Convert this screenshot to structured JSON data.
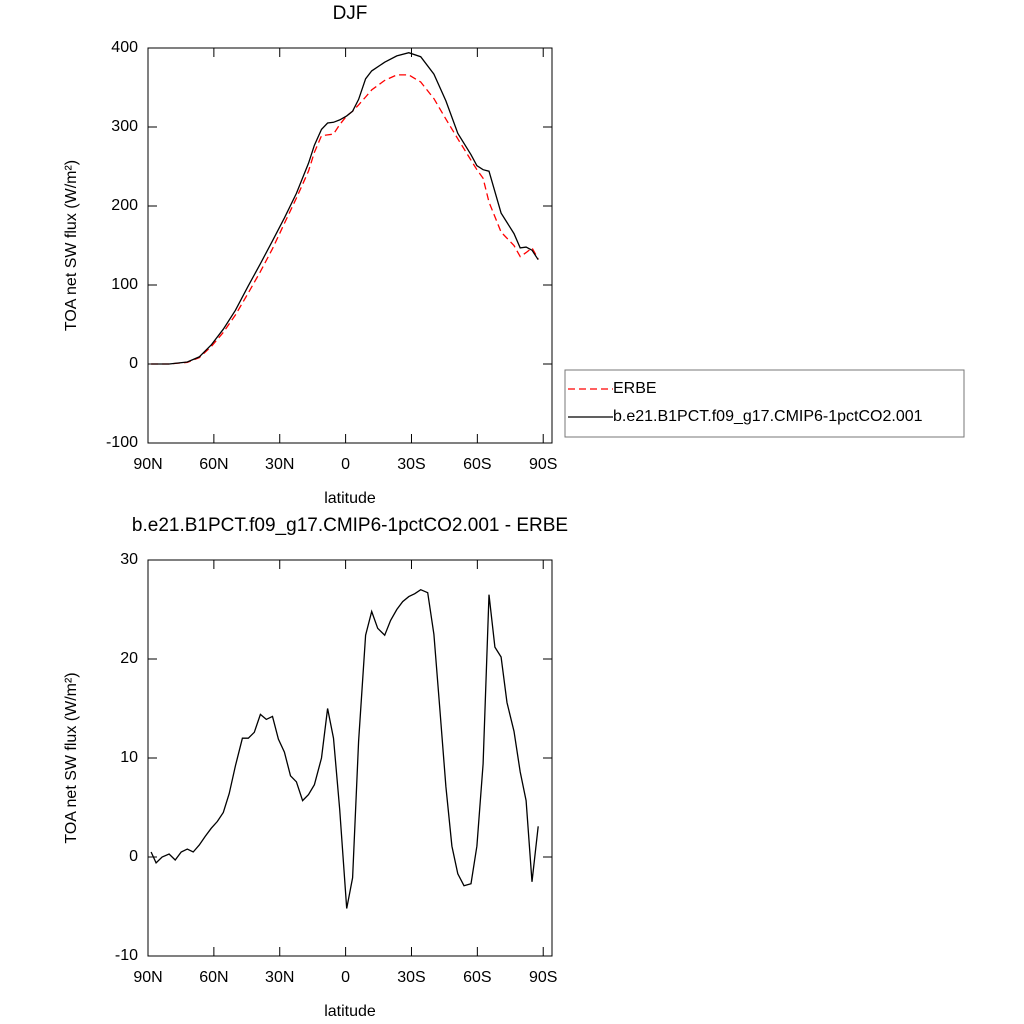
{
  "chart_data": [
    {
      "type": "line",
      "title": "DJF",
      "xlabel": "latitude",
      "ylabel": "TOA net SW flux (W/m²)",
      "x": [
        88.6,
        80.4,
        72.1,
        66.7,
        61.2,
        55.7,
        50.2,
        44.3,
        38.8,
        33.3,
        27.9,
        22.4,
        16.9,
        14.2,
        11,
        8.2,
        5.5,
        2.7,
        -0.5,
        -3.2,
        -5.9,
        -9.1,
        -11.9,
        -17.8,
        -23.3,
        -28.8,
        -34.2,
        -40.2,
        -45.7,
        -51.1,
        -57.1,
        -59.8,
        -62.6,
        -65.3,
        -70.8,
        -76.7,
        -79.5,
        -82.2,
        -84.9,
        -87.7
      ],
      "series": [
        {
          "name": "ERBE",
          "color": "#ff0000",
          "style": "dashed",
          "values": [
            0,
            0,
            2,
            8,
            22,
            40,
            62,
            90,
            117,
            146,
            178,
            210,
            244,
            268,
            289,
            290,
            291,
            303,
            314,
            320,
            328,
            338,
            347,
            359,
            366,
            366,
            357,
            336,
            310,
            285,
            258,
            246,
            235,
            205,
            167,
            150,
            136,
            141,
            147,
            133
          ]
        },
        {
          "name": "b.e21.B1PCT.f09_g17.CMIP6-1pctCO2.001",
          "color": "#000000",
          "style": "solid",
          "values": [
            0,
            0,
            2.5,
            9,
            24,
            44,
            68,
            99,
            127,
            156,
            185,
            216,
            254,
            277,
            297,
            305,
            306,
            309,
            314,
            320,
            335,
            361,
            371,
            382,
            390,
            394,
            389,
            367,
            333,
            292,
            265,
            251,
            246,
            244,
            191,
            165,
            147,
            148,
            144,
            132
          ]
        }
      ],
      "xlim": [
        90,
        -94
      ],
      "xticks": [
        {
          "value": 90,
          "label": "90N"
        },
        {
          "value": 60,
          "label": "60N"
        },
        {
          "value": 30,
          "label": "30N"
        },
        0,
        {
          "value": -30,
          "label": "30S"
        },
        {
          "value": -60,
          "label": "60S"
        },
        {
          "value": -90,
          "label": "90S"
        }
      ],
      "ylim": [
        -100,
        400
      ],
      "yticks": [
        -100,
        0,
        100,
        200,
        300,
        400
      ],
      "legend": "right"
    },
    {
      "type": "line",
      "title": "b.e21.B1PCT.f09_g17.CMIP6-1pctCO2.001 - ERBE",
      "xlabel": "latitude",
      "ylabel": "TOA net SW flux (W/m²)",
      "x": [
        88.6,
        86.3,
        83.6,
        80.4,
        77.6,
        74.9,
        72.1,
        69.4,
        66.7,
        63.9,
        61.2,
        58.4,
        55.7,
        53,
        50.2,
        47,
        44.3,
        41.6,
        38.8,
        36.1,
        33.3,
        30.6,
        27.9,
        25.1,
        22.4,
        19.6,
        16.9,
        14.2,
        11,
        8.2,
        5.5,
        2.7,
        -0.5,
        -3.2,
        -5.9,
        -9.1,
        -11.9,
        -14.6,
        -17.8,
        -20.5,
        -23.3,
        -26,
        -28.8,
        -31.5,
        -34.2,
        -37.4,
        -40.2,
        -42.9,
        -45.7,
        -48.4,
        -51.1,
        -53.9,
        -57.1,
        -59.8,
        -62.6,
        -65.3,
        -68,
        -70.8,
        -73.5,
        -76.7,
        -79.5,
        -82.2,
        -84.9,
        -87.7
      ],
      "series": [
        {
          "name": null,
          "color": "#000000",
          "style": "solid",
          "values": [
            0.5,
            -0.6,
            0,
            0.3,
            -0.3,
            0.5,
            0.8,
            0.5,
            1.2,
            2.1,
            2.9,
            3.6,
            4.5,
            6.4,
            9.2,
            12,
            12,
            12.6,
            14.4,
            13.9,
            14.2,
            11.9,
            10.6,
            8.2,
            7.6,
            5.7,
            6.3,
            7.3,
            10,
            15,
            12,
            4.8,
            -5.2,
            -2.1,
            11.7,
            22.4,
            24.8,
            23.1,
            22.4,
            23.9,
            25,
            25.8,
            26.3,
            26.6,
            27,
            26.7,
            22.5,
            15,
            7.1,
            1.1,
            -1.7,
            -2.9,
            -2.7,
            1.1,
            9.4,
            26.5,
            21.2,
            20.2,
            15.6,
            12.7,
            8.6,
            5.7,
            -2.5,
            3.1
          ]
        }
      ],
      "xlim": [
        90,
        -94
      ],
      "xticks": [
        {
          "value": 90,
          "label": "90N"
        },
        {
          "value": 60,
          "label": "60N"
        },
        {
          "value": 30,
          "label": "30N"
        },
        0,
        {
          "value": -30,
          "label": "30S"
        },
        {
          "value": -60,
          "label": "60S"
        },
        {
          "value": -90,
          "label": "90S"
        }
      ],
      "ylim": [
        -10,
        30
      ],
      "yticks": [
        -10,
        0,
        10,
        20,
        30
      ]
    }
  ]
}
